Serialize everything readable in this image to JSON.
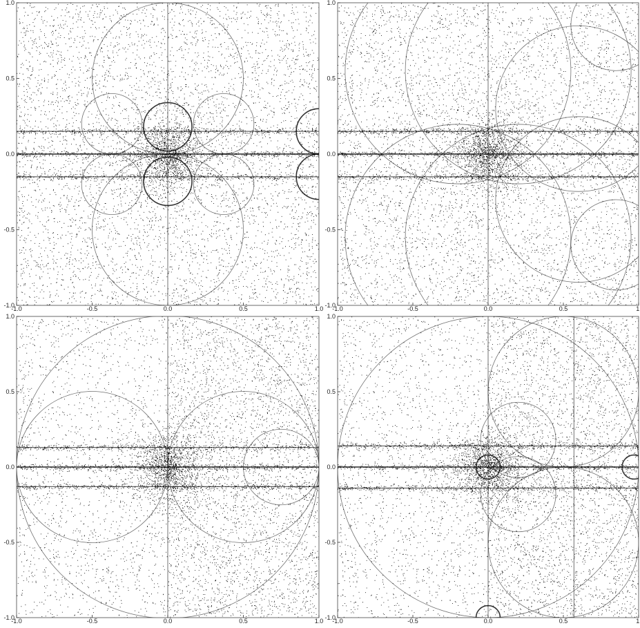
{
  "figure": {
    "style": {
      "dot_color": "#000000",
      "frame_color": "#444444",
      "background": "#ffffff"
    }
  },
  "chart_data": [
    {
      "type": "scatter",
      "panel": "top-left",
      "xlim": [
        -1,
        1
      ],
      "ylim": [
        -1,
        1
      ],
      "x_ticks": [
        -1,
        -0.5,
        0,
        0.5,
        1
      ],
      "y_ticks": [
        -1,
        -0.5,
        0,
        0.5,
        1
      ],
      "x_tick_labels": [
        "-1.0",
        "-0.5",
        "0.0",
        "0.5",
        "1.0"
      ],
      "y_tick_labels": [
        "-1.0",
        "-0.5",
        "0.0",
        "0.5",
        "1.0"
      ],
      "grid": false,
      "legend": "none",
      "description_points": "dense point cloud concentrated near origin; dark circles of radius ~0.15 centered at (0, 0.18) and (0, -0.18); faint circles tangent along axes",
      "circles": [
        {
          "cx": 0,
          "cy": 0.18,
          "r": 0.16
        },
        {
          "cx": 0,
          "cy": -0.18,
          "r": 0.16
        },
        {
          "cx": -0.37,
          "cy": 0.2,
          "r": 0.2
        },
        {
          "cx": 0.37,
          "cy": 0.2,
          "r": 0.2
        },
        {
          "cx": -0.37,
          "cy": -0.2,
          "r": 0.2
        },
        {
          "cx": 0.37,
          "cy": -0.2,
          "r": 0.2
        },
        {
          "cx": 1.0,
          "cy": 0.15,
          "r": 0.15
        },
        {
          "cx": 1.0,
          "cy": -0.15,
          "r": 0.15
        },
        {
          "cx": 0,
          "cy": 0.5,
          "r": 0.5
        },
        {
          "cx": 0,
          "cy": -0.5,
          "r": 0.5
        }
      ],
      "hbands": [
        0.0,
        0.15,
        -0.15
      ],
      "vlines": [
        0.0
      ]
    },
    {
      "type": "scatter",
      "panel": "top-right",
      "xlim": [
        -1,
        1
      ],
      "ylim": [
        -1,
        1
      ],
      "x_ticks": [
        -1,
        -0.5,
        0,
        0.5,
        1
      ],
      "y_ticks": [
        -1,
        -0.5,
        0,
        0.5,
        1
      ],
      "x_tick_labels": [
        "-1.0",
        "-0.5",
        "0.0",
        "0.5",
        "1."
      ],
      "y_tick_labels": [
        "-1.0",
        "-0.5",
        "0.0",
        "0.5",
        "1.0"
      ],
      "grid": false,
      "legend": "none",
      "circles": [
        {
          "cx": -0.2,
          "cy": 0.55,
          "r": 0.75
        },
        {
          "cx": 0.2,
          "cy": 0.55,
          "r": 0.75
        },
        {
          "cx": -0.2,
          "cy": -0.55,
          "r": 0.75
        },
        {
          "cx": 0.2,
          "cy": -0.55,
          "r": 0.75
        },
        {
          "cx": 0.6,
          "cy": 0.3,
          "r": 0.55
        },
        {
          "cx": 0.6,
          "cy": -0.3,
          "r": 0.55
        },
        {
          "cx": 0.85,
          "cy": 0.85,
          "r": 0.3
        },
        {
          "cx": 0.85,
          "cy": -0.6,
          "r": 0.3
        }
      ],
      "hbands": [
        0.0,
        0.15,
        -0.15
      ],
      "vlines": [
        0.0
      ]
    },
    {
      "type": "scatter",
      "panel": "bottom-left",
      "xlim": [
        -1,
        1
      ],
      "ylim": [
        -1,
        1
      ],
      "x_ticks": [
        -1,
        -0.5,
        0,
        0.5,
        1
      ],
      "y_ticks": [
        -1,
        -0.5,
        0,
        0.5,
        1
      ],
      "x_tick_labels": [
        "-1.0",
        "-0.5",
        "0.0",
        "0.5",
        "1.0"
      ],
      "y_tick_labels": [
        "-1.0",
        "-0.5",
        "0.0",
        "0.5",
        "1.0"
      ],
      "grid": false,
      "legend": "none",
      "circles": [
        {
          "cx": 0,
          "cy": 0,
          "r": 1.0
        },
        {
          "cx": 0.5,
          "cy": 0,
          "r": 0.5
        },
        {
          "cx": -0.5,
          "cy": 0,
          "r": 0.5
        },
        {
          "cx": 0.75,
          "cy": 0.0,
          "r": 0.25
        }
      ],
      "hbands": [
        0.0,
        0.13,
        -0.13
      ],
      "vlines": [
        0.0
      ],
      "right_half_denser": true
    },
    {
      "type": "scatter",
      "panel": "bottom-right",
      "xlim": [
        -1,
        1
      ],
      "ylim": [
        -1,
        1
      ],
      "x_ticks": [
        -1,
        -0.5,
        0,
        0.5,
        1
      ],
      "y_ticks": [
        -1,
        -0.5,
        0,
        0.5,
        1
      ],
      "x_tick_labels": [
        "-1.0",
        "-0.5",
        "0.0",
        "0.5",
        "1."
      ],
      "y_tick_labels": [
        "-1.0",
        "-0.5",
        "0.0",
        "0.5",
        "1.0"
      ],
      "grid": false,
      "legend": "none",
      "circles": [
        {
          "cx": 0,
          "cy": 0,
          "r": 1.0
        },
        {
          "cx": 0.0,
          "cy": 0.0,
          "r": 0.08
        },
        {
          "cx": 0.97,
          "cy": 0.0,
          "r": 0.08
        },
        {
          "cx": 0.2,
          "cy": 0.18,
          "r": 0.25
        },
        {
          "cx": 0.2,
          "cy": -0.18,
          "r": 0.25
        },
        {
          "cx": 0.5,
          "cy": 0.5,
          "r": 0.5
        },
        {
          "cx": 0.5,
          "cy": -0.5,
          "r": 0.5
        },
        {
          "cx": 0.0,
          "cy": -1.0,
          "r": 0.08
        }
      ],
      "hbands": [
        0.0,
        0.14,
        -0.14
      ],
      "vlines": [
        0.0,
        0.57
      ],
      "right_half_denser": true
    }
  ]
}
